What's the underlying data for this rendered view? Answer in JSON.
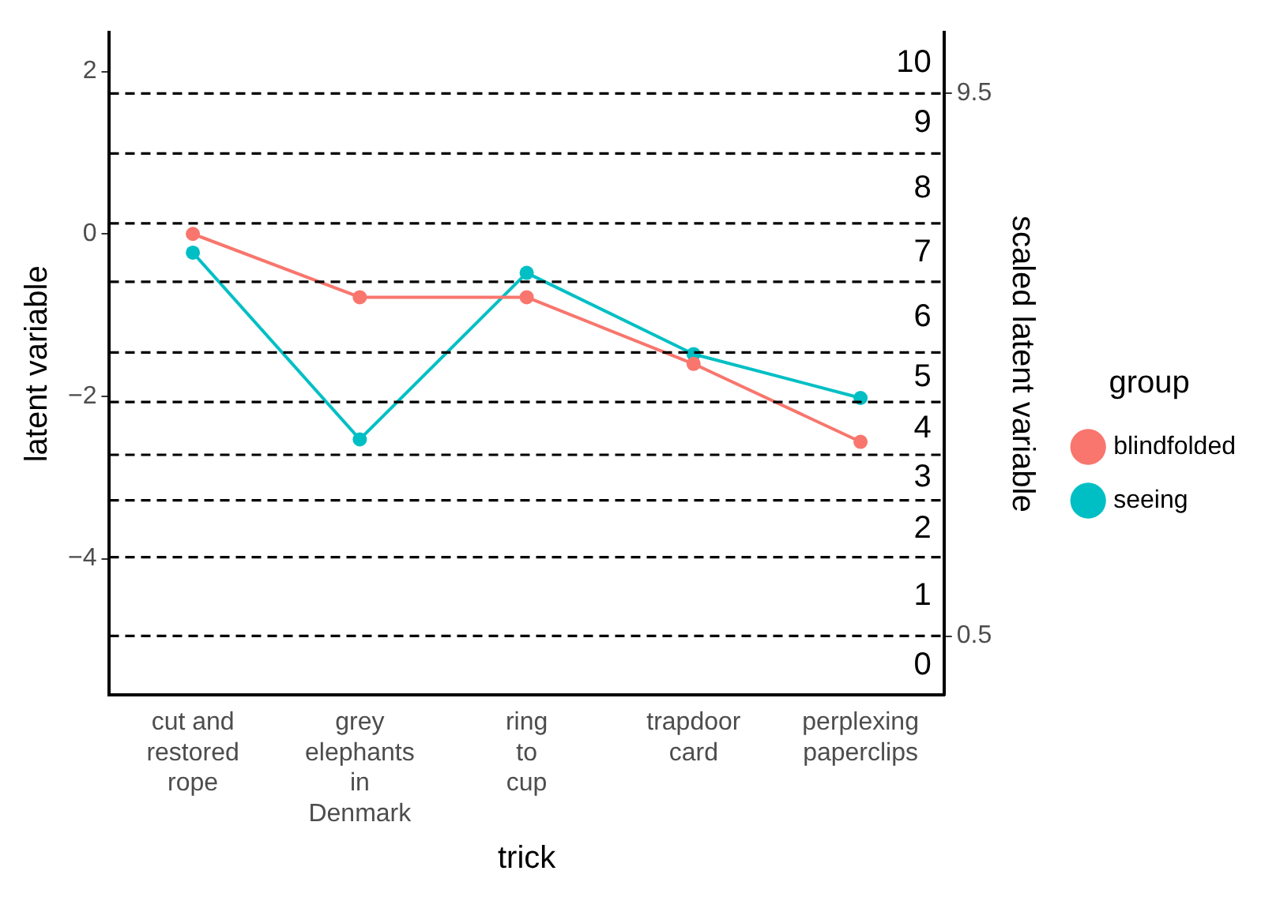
{
  "chart_data": {
    "type": "line",
    "xlabel": "trick",
    "ylabel": "latent variable",
    "y2label": "scaled latent variable",
    "legend_title": "group",
    "categories": [
      "cut and\nrestored\nrope",
      "grey\nelephants\nin\nDenmark",
      "ring\nto\ncup",
      "trapdoor\ncard",
      "perplexing\npaperclips"
    ],
    "series": [
      {
        "name": "blindfolded",
        "color": "#f8766d",
        "values": [
          0.0,
          -0.78,
          -0.78,
          -1.6,
          -2.56
        ]
      },
      {
        "name": "seeing",
        "color": "#00bfc4",
        "values": [
          -0.23,
          -2.53,
          -0.48,
          -1.48,
          -2.02
        ]
      }
    ],
    "ylim": [
      -5.68,
      2.48
    ],
    "yticks": [
      -4,
      -2,
      0,
      2
    ],
    "y2lim": [
      -0.48,
      10.51
    ],
    "y2ticks": [
      0.5,
      9.5
    ],
    "ref_lines": [
      {
        "axis": "y",
        "value": 1.73,
        "color": "#000000",
        "line_style": "dashed"
      },
      {
        "axis": "y",
        "value": 0.99,
        "color": "#000000",
        "line_style": "dashed"
      },
      {
        "axis": "y",
        "value": 0.13,
        "color": "#000000",
        "line_style": "dashed"
      },
      {
        "axis": "y",
        "value": -0.59,
        "color": "#000000",
        "line_style": "dashed"
      },
      {
        "axis": "y",
        "value": -1.46,
        "color": "#000000",
        "line_style": "dashed"
      },
      {
        "axis": "y",
        "value": -2.07,
        "color": "#000000",
        "line_style": "dashed"
      },
      {
        "axis": "y",
        "value": -2.72,
        "color": "#000000",
        "line_style": "dashed"
      },
      {
        "axis": "y",
        "value": -3.28,
        "color": "#000000",
        "line_style": "dashed"
      },
      {
        "axis": "y",
        "value": -3.98,
        "color": "#000000",
        "line_style": "dashed"
      },
      {
        "axis": "y",
        "value": -4.95,
        "color": "#000000",
        "line_style": "dashed"
      }
    ],
    "annotations": [
      "10",
      "9",
      "8",
      "7",
      "6",
      "5",
      "4",
      "3",
      "2",
      "1",
      "0"
    ],
    "grid": false,
    "legend": "right",
    "marker": "circle",
    "line_style": "solid"
  }
}
